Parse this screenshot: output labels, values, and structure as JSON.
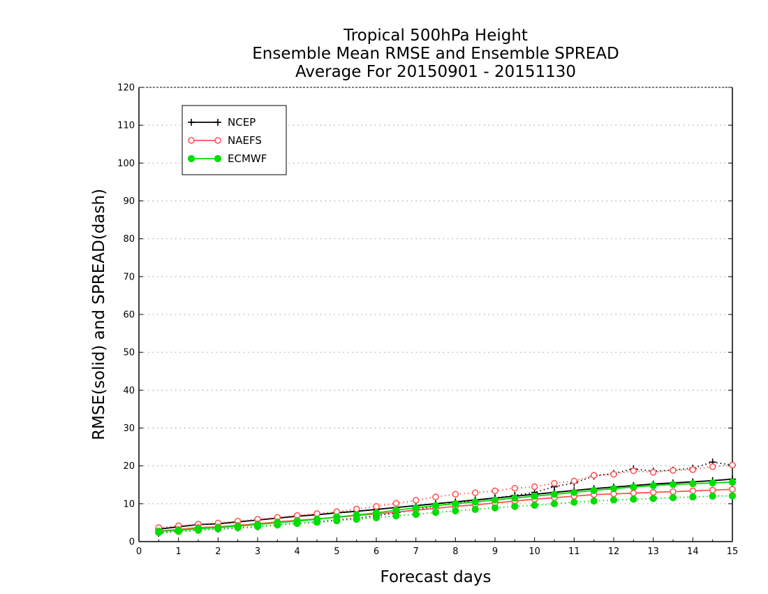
{
  "chart_data": {
    "type": "line",
    "title_lines": [
      "Tropical 500hPa Height",
      "Ensemble Mean RMSE and Ensemble SPREAD",
      "Average For 20150901 - 20151130"
    ],
    "xlabel": "Forecast days",
    "ylabel": "RMSE(solid) and SPREAD(dash)",
    "xlim": [
      0,
      15
    ],
    "ylim": [
      0,
      120
    ],
    "xticks": [
      0,
      1,
      2,
      3,
      4,
      5,
      6,
      7,
      8,
      9,
      10,
      11,
      12,
      13,
      14,
      15
    ],
    "yticks": [
      0,
      10,
      20,
      30,
      40,
      50,
      60,
      70,
      80,
      90,
      100,
      110,
      120
    ],
    "grid": "horizontal-dotted",
    "legend_position": "top-left",
    "x": [
      0.5,
      1,
      1.5,
      2,
      2.5,
      3,
      3.5,
      4,
      4.5,
      5,
      5.5,
      6,
      6.5,
      7,
      7.5,
      8,
      8.5,
      9,
      9.5,
      10,
      10.5,
      11,
      11.5,
      12,
      12.5,
      13,
      13.5,
      14,
      14.5,
      15
    ],
    "series": [
      {
        "name": "NCEP",
        "color": "#000000",
        "marker": "plus",
        "rmse": [
          3.3,
          3.9,
          4.5,
          4.7,
          5.2,
          5.7,
          6.2,
          6.7,
          7.1,
          7.6,
          8.0,
          8.5,
          9.0,
          9.5,
          10.0,
          10.5,
          11.0,
          11.5,
          12.0,
          12.5,
          13.0,
          13.5,
          14.0,
          14.4,
          14.8,
          15.2,
          15.5,
          15.8,
          16.1,
          16.5
        ],
        "spread": [
          2.2,
          2.7,
          3.0,
          3.3,
          3.6,
          3.9,
          4.4,
          4.8,
          5.2,
          5.7,
          6.2,
          6.8,
          7.6,
          8.4,
          9.4,
          10.2,
          10.9,
          11.5,
          12.2,
          13.0,
          14.5,
          15.5,
          17.3,
          18.0,
          19.2,
          18.6,
          18.9,
          19.4,
          21.0,
          20.2
        ]
      },
      {
        "name": "NAEFS",
        "color": "#ff5555",
        "marker": "open-circle",
        "rmse": [
          2.8,
          3.2,
          3.7,
          3.9,
          4.3,
          4.7,
          5.2,
          5.6,
          6.0,
          6.4,
          6.9,
          7.3,
          7.8,
          8.3,
          8.8,
          9.3,
          9.7,
          10.2,
          10.7,
          11.2,
          11.6,
          12.0,
          12.4,
          12.6,
          12.8,
          13.0,
          13.2,
          13.4,
          13.6,
          13.8
        ],
        "spread": [
          3.7,
          4.2,
          4.6,
          4.9,
          5.4,
          5.9,
          6.4,
          6.9,
          7.4,
          7.9,
          8.6,
          9.3,
          10.1,
          10.9,
          11.8,
          12.5,
          12.9,
          13.4,
          14.1,
          14.5,
          15.4,
          16.0,
          17.5,
          17.8,
          18.7,
          18.3,
          18.8,
          19.0,
          19.8,
          20.2
        ]
      },
      {
        "name": "ECMWF",
        "color": "#00dd00",
        "marker": "filled-circle",
        "rmse": [
          2.7,
          3.0,
          3.4,
          3.7,
          4.1,
          4.5,
          5.0,
          5.4,
          5.9,
          6.5,
          7.0,
          7.6,
          8.3,
          8.9,
          9.5,
          10.0,
          10.5,
          11.0,
          11.5,
          12.0,
          12.5,
          13.0,
          13.5,
          14.0,
          14.4,
          14.8,
          15.1,
          15.3,
          15.5,
          15.7
        ],
        "spread": [
          2.4,
          2.7,
          3.0,
          3.4,
          3.7,
          4.0,
          4.4,
          4.8,
          5.1,
          5.5,
          5.9,
          6.3,
          6.8,
          7.2,
          7.7,
          8.1,
          8.5,
          8.9,
          9.3,
          9.6,
          10.0,
          10.4,
          10.7,
          11.0,
          11.2,
          11.4,
          11.6,
          11.8,
          12.0,
          12.1
        ]
      }
    ]
  }
}
